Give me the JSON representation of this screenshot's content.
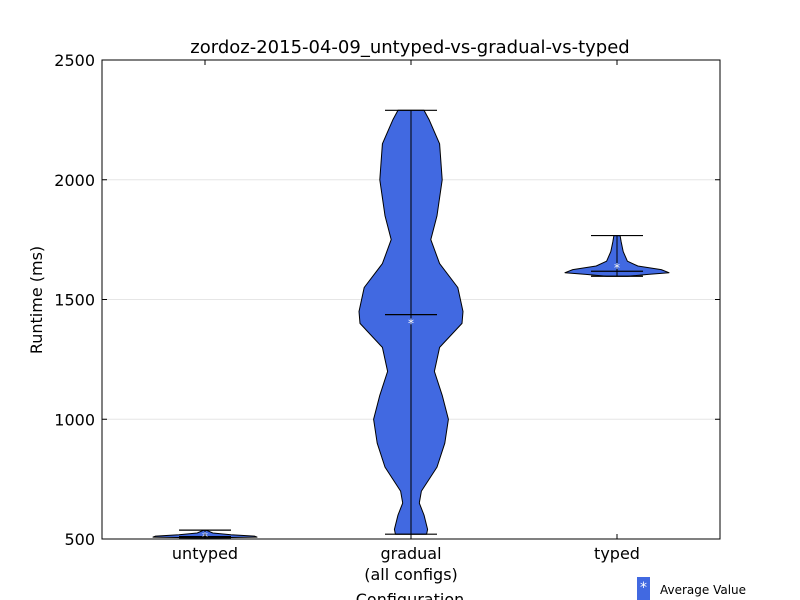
{
  "chart_data": {
    "type": "violin",
    "title": "zordoz-2015-04-09_untyped-vs-gradual-vs-typed",
    "xlabel": "Configuration",
    "ylabel": "Runtime (ms)",
    "ylim": [
      500,
      2500
    ],
    "yticks": [
      500,
      1000,
      1500,
      2000,
      2500
    ],
    "grid": "horizontal",
    "violin_color": "#4169e1",
    "categories": [
      {
        "label": "untyped",
        "sublabel": ""
      },
      {
        "label": "gradual",
        "sublabel": "(all configs)"
      },
      {
        "label": "typed",
        "sublabel": ""
      }
    ],
    "series": [
      {
        "min": 505,
        "max": 537,
        "median": 510,
        "mean": 513,
        "profile": [
          [
            505,
            0.2
          ],
          [
            508,
            1.0
          ],
          [
            512,
            0.95
          ],
          [
            518,
            0.5
          ],
          [
            525,
            0.15
          ],
          [
            537,
            0.02
          ]
        ]
      },
      {
        "min": 520,
        "max": 2290,
        "median": 1437,
        "mean": 1405,
        "profile": [
          [
            520,
            0.3
          ],
          [
            540,
            0.32
          ],
          [
            600,
            0.25
          ],
          [
            650,
            0.16
          ],
          [
            700,
            0.2
          ],
          [
            800,
            0.5
          ],
          [
            900,
            0.65
          ],
          [
            1000,
            0.72
          ],
          [
            1100,
            0.6
          ],
          [
            1200,
            0.45
          ],
          [
            1300,
            0.55
          ],
          [
            1400,
            0.98
          ],
          [
            1450,
            1.0
          ],
          [
            1550,
            0.9
          ],
          [
            1650,
            0.55
          ],
          [
            1750,
            0.38
          ],
          [
            1850,
            0.5
          ],
          [
            2000,
            0.6
          ],
          [
            2150,
            0.55
          ],
          [
            2250,
            0.35
          ],
          [
            2290,
            0.25
          ]
        ]
      },
      {
        "min": 1597,
        "max": 1767,
        "median": 1618,
        "mean": 1636,
        "profile": [
          [
            1597,
            0.2
          ],
          [
            1605,
            0.6
          ],
          [
            1612,
            1.0
          ],
          [
            1625,
            0.85
          ],
          [
            1640,
            0.4
          ],
          [
            1660,
            0.2
          ],
          [
            1700,
            0.12
          ],
          [
            1740,
            0.08
          ],
          [
            1767,
            0.06
          ]
        ]
      }
    ],
    "legend": {
      "marker": "*",
      "label": "Average Value",
      "position": "bottom-right"
    }
  }
}
